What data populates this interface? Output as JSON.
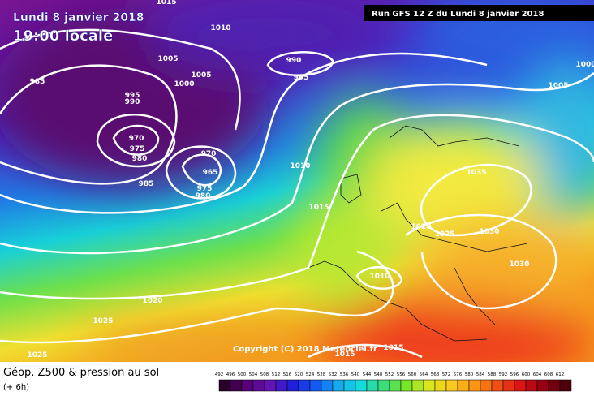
{
  "header": {
    "date": "Lundi 8 janvier 2018",
    "time": "19:00 locale",
    "run": "Run GFS 12 Z du Lundi 8 janvier 2018"
  },
  "isobar_labels": [
    1015,
    1010,
    1005,
    1005,
    1000,
    985,
    995,
    990,
    970,
    975,
    980,
    985,
    990,
    995,
    970,
    965,
    975,
    980,
    1010,
    1015,
    1020,
    1025,
    1030,
    1035,
    1030,
    1010,
    1020,
    1025,
    1025,
    1015,
    1015,
    1005,
    1000
  ],
  "copyright": "Copyright (C) 2018 Meteociel.fr",
  "legend": {
    "title": "Géop. Z500 & pression au sol",
    "subtitle": "(+ 6h)",
    "scale": [
      492,
      496,
      500,
      504,
      508,
      512,
      516,
      520,
      524,
      528,
      532,
      536,
      540,
      544,
      548,
      552,
      556,
      560,
      564,
      568,
      572,
      576,
      580,
      584,
      588,
      592,
      596,
      600,
      604,
      608,
      612
    ]
  }
}
